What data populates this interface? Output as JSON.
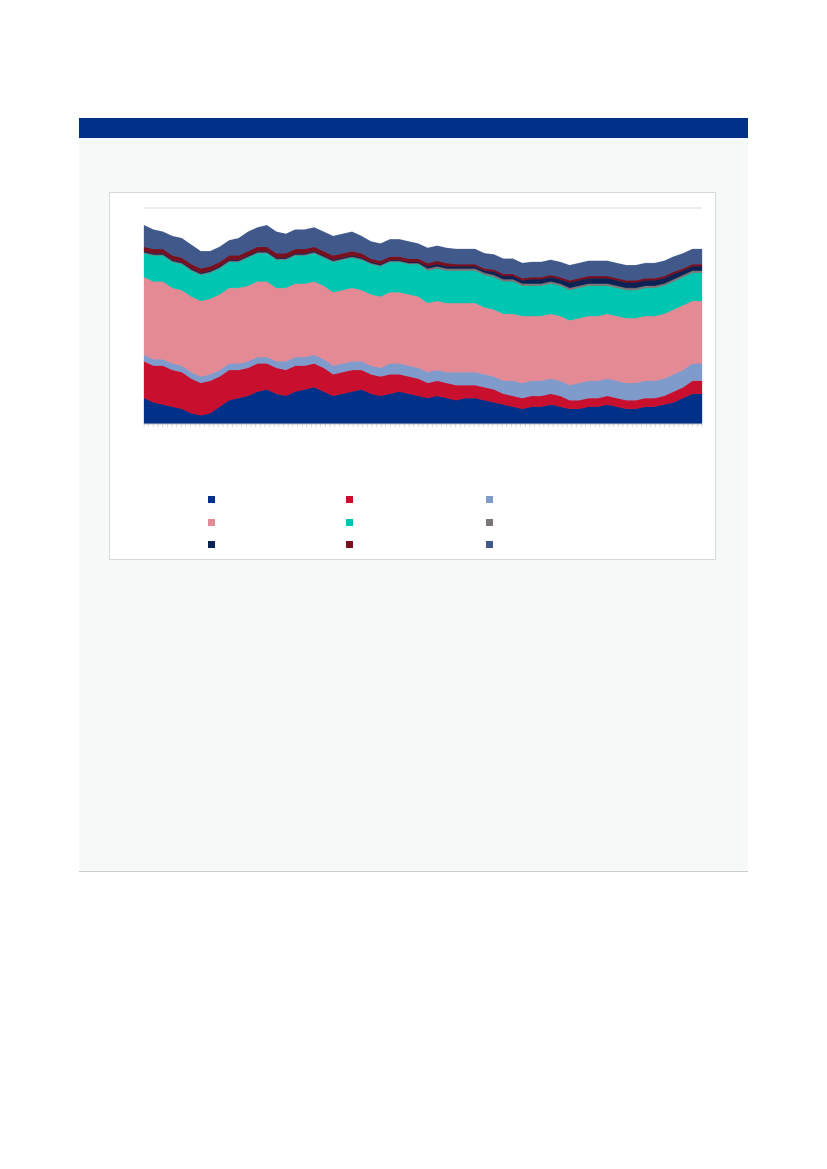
{
  "chart_data": {
    "type": "area",
    "stacked": true,
    "title": "",
    "xlabel": "",
    "ylabel": "",
    "ylim": [
      0,
      100
    ],
    "grid": true,
    "legend_position": "bottom",
    "x_points": 60,
    "series": [
      {
        "color": "#003087",
        "values": [
          12,
          10,
          9,
          8,
          7,
          5,
          4,
          5,
          8,
          11,
          12,
          13,
          15,
          16,
          14,
          13,
          15,
          16,
          17,
          15,
          13,
          14,
          15,
          16,
          14,
          13,
          14,
          15,
          14,
          13,
          12,
          13,
          12,
          11,
          12,
          12,
          11,
          10,
          9,
          8,
          7,
          8,
          8,
          9,
          8,
          7,
          7,
          8,
          8,
          9,
          8,
          7,
          7,
          8,
          8,
          9,
          10,
          12,
          14,
          14
        ]
      },
      {
        "color": "#c8102e",
        "values": [
          17,
          17,
          18,
          17,
          17,
          16,
          15,
          15,
          14,
          14,
          13,
          13,
          13,
          12,
          12,
          12,
          12,
          11,
          11,
          11,
          10,
          10,
          10,
          9,
          9,
          9,
          9,
          8,
          8,
          8,
          7,
          7,
          7,
          7,
          6,
          6,
          6,
          6,
          5,
          5,
          5,
          5,
          5,
          5,
          5,
          4,
          4,
          4,
          4,
          4,
          4,
          4,
          4,
          4,
          4,
          4,
          5,
          5,
          6,
          6
        ]
      },
      {
        "color": "#7f9bcc",
        "values": [
          3,
          3,
          3,
          3,
          3,
          3,
          3,
          3,
          3,
          3,
          3,
          3,
          3,
          3,
          3,
          4,
          4,
          4,
          4,
          4,
          4,
          4,
          4,
          4,
          4,
          4,
          5,
          5,
          5,
          5,
          5,
          5,
          5,
          6,
          6,
          6,
          6,
          6,
          6,
          7,
          7,
          7,
          7,
          7,
          7,
          7,
          8,
          8,
          8,
          8,
          8,
          8,
          8,
          8,
          8,
          8,
          8,
          8,
          8,
          8
        ]
      },
      {
        "color": "#e38a95",
        "values": [
          36,
          36,
          36,
          35,
          35,
          35,
          35,
          35,
          35,
          35,
          35,
          35,
          35,
          35,
          34,
          34,
          34,
          34,
          34,
          34,
          34,
          34,
          34,
          33,
          33,
          33,
          33,
          33,
          33,
          33,
          32,
          32,
          32,
          32,
          32,
          32,
          31,
          31,
          31,
          31,
          31,
          30,
          30,
          30,
          30,
          30,
          30,
          30,
          30,
          30,
          30,
          30,
          30,
          30,
          30,
          30,
          30,
          30,
          29,
          29
        ]
      },
      {
        "color": "#00c5b0",
        "values": [
          11,
          12,
          12,
          12,
          12,
          12,
          12,
          12,
          12,
          12,
          12,
          13,
          13,
          13,
          13,
          13,
          13,
          13,
          13,
          13,
          14,
          14,
          14,
          14,
          14,
          14,
          14,
          14,
          14,
          15,
          15,
          15,
          15,
          15,
          15,
          15,
          15,
          15,
          15,
          15,
          14,
          14,
          14,
          14,
          14,
          14,
          14,
          14,
          14,
          13,
          13,
          13,
          13,
          13,
          13,
          13,
          13,
          13,
          13,
          13
        ]
      },
      {
        "color": "#7a7576",
        "values": [
          0.5,
          0.5,
          0.5,
          0.5,
          0.5,
          0.5,
          0.5,
          0.5,
          0.5,
          0.5,
          0.5,
          0.5,
          0.5,
          0.5,
          0.5,
          0.5,
          0.5,
          0.5,
          0.5,
          0.5,
          0.5,
          0.5,
          0.5,
          0.5,
          0.5,
          0.5,
          0.5,
          0.5,
          0.5,
          0.5,
          1,
          1,
          1,
          1,
          1,
          1,
          1,
          1,
          1,
          1,
          1,
          1,
          1,
          1,
          1,
          1,
          1,
          1,
          1,
          1,
          1,
          1,
          1,
          1,
          1,
          1,
          1,
          1,
          1,
          1
        ]
      },
      {
        "color": "#0b2254",
        "values": [
          0.5,
          0.5,
          0.5,
          0.5,
          0.5,
          0.5,
          0.5,
          0.5,
          0.5,
          0.5,
          0.5,
          0.5,
          0.5,
          0.5,
          0.5,
          0.5,
          0.5,
          0.5,
          0.5,
          0.5,
          0.5,
          0.5,
          0.5,
          0.5,
          0.5,
          0.5,
          0.5,
          0.5,
          0.5,
          0.5,
          1,
          1,
          1,
          1,
          1,
          1,
          1,
          1.5,
          1.5,
          1.5,
          1.5,
          2,
          2,
          2,
          2,
          2.5,
          2.5,
          2.5,
          2.5,
          2.5,
          2.5,
          2.5,
          2.5,
          2.5,
          2.5,
          2.5,
          2.5,
          2,
          2,
          2
        ]
      },
      {
        "color": "#7a0f1e",
        "values": [
          2,
          2,
          2,
          2,
          2,
          2,
          2,
          2,
          2,
          2,
          2,
          2,
          2,
          2,
          2,
          2,
          2,
          2,
          2,
          2,
          2,
          2,
          2,
          2,
          1.5,
          1.5,
          1.5,
          1.5,
          1.5,
          1.5,
          1.5,
          1.5,
          1.5,
          1,
          1,
          1,
          1,
          1,
          1,
          1,
          1,
          1,
          1,
          1,
          1,
          1,
          1,
          1,
          1,
          1,
          1,
          1,
          1,
          1,
          1,
          1,
          1,
          1,
          1,
          1
        ]
      },
      {
        "color": "#40588a",
        "values": [
          10,
          9,
          8,
          9,
          9,
          9,
          8,
          7,
          7,
          7,
          8,
          9,
          9,
          10,
          10,
          9,
          9,
          9,
          9,
          9,
          9,
          9,
          9,
          8,
          8,
          8,
          8,
          8,
          8,
          7,
          7,
          7,
          7,
          7,
          7,
          7,
          7,
          7,
          7,
          7,
          7,
          7,
          7,
          7,
          7,
          7,
          7,
          7,
          7,
          7,
          7,
          7,
          7,
          7,
          7,
          7,
          7,
          7,
          7,
          7
        ]
      }
    ]
  }
}
